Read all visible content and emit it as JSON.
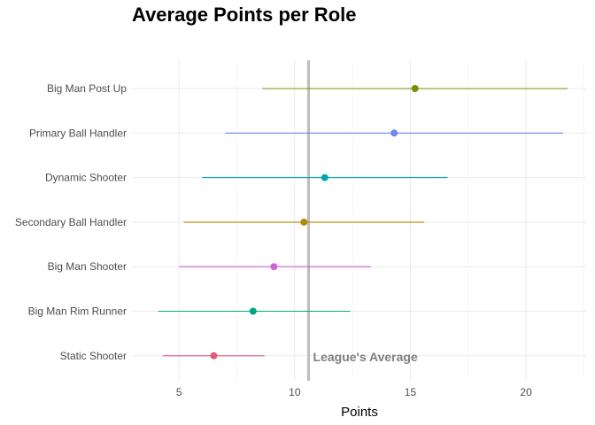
{
  "chart_data": {
    "type": "dot-range",
    "title": "Average Points per Role",
    "xlabel": "Points",
    "ylabel": "",
    "xlim": [
      3.0,
      22.6
    ],
    "xticks": [
      5,
      10,
      15,
      20
    ],
    "grid": true,
    "legend": "none",
    "reference_line": {
      "value": 10.6,
      "label": "League's Average",
      "color": "#bdbdbd",
      "label_color": "#808080"
    },
    "categories": [
      "Big Man Post Up",
      "Primary Ball Handler",
      "Dynamic Shooter",
      "Secondary Ball Handler",
      "Big Man Shooter",
      "Big Man Rim Runner",
      "Static Shooter"
    ],
    "series": [
      {
        "category": "Big Man Post Up",
        "mean": 15.2,
        "low": 8.6,
        "high": 21.8,
        "color": "#7a8e00"
      },
      {
        "category": "Primary Ball Handler",
        "mean": 14.3,
        "low": 7.0,
        "high": 21.6,
        "color": "#6b8bec"
      },
      {
        "category": "Dynamic Shooter",
        "mean": 11.3,
        "low": 6.0,
        "high": 16.6,
        "color": "#00a7b4"
      },
      {
        "category": "Secondary Ball Handler",
        "mean": 10.4,
        "low": 5.2,
        "high": 15.6,
        "color": "#b08c00"
      },
      {
        "category": "Big Man Shooter",
        "mean": 9.1,
        "low": 5.0,
        "high": 13.3,
        "color": "#cc66d6"
      },
      {
        "category": "Big Man Rim Runner",
        "mean": 8.2,
        "low": 4.1,
        "high": 12.4,
        "color": "#00a87b"
      },
      {
        "category": "Static Shooter",
        "mean": 6.5,
        "low": 4.3,
        "high": 8.7,
        "color": "#e05a7a"
      }
    ]
  }
}
